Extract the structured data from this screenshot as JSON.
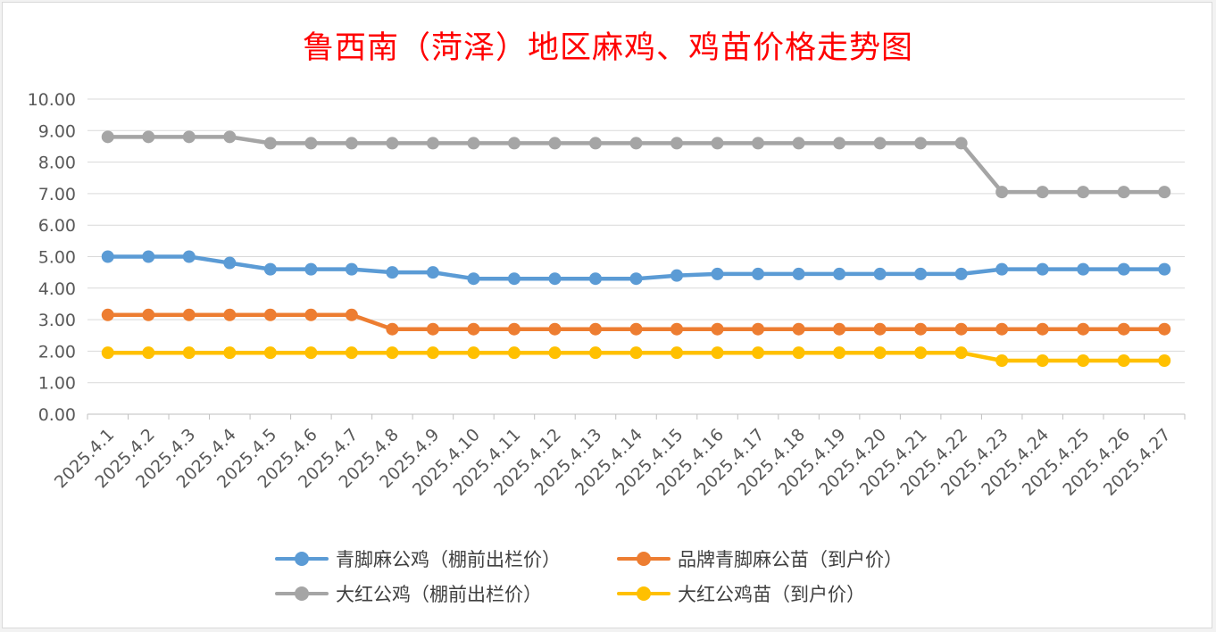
{
  "chart_data": {
    "type": "line",
    "title": "鲁西南（菏泽）地区麻鸡、鸡苗价格走势图",
    "categories": [
      "2025.4.1",
      "2025.4.2",
      "2025.4.3",
      "2025.4.4",
      "2025.4.5",
      "2025.4.6",
      "2025.4.7",
      "2025.4.8",
      "2025.4.9",
      "2025.4.10",
      "2025.4.11",
      "2025.4.12",
      "2025.4.13",
      "2025.4.14",
      "2025.4.15",
      "2025.4.16",
      "2025.4.17",
      "2025.4.18",
      "2025.4.19",
      "2025.4.20",
      "2025.4.21",
      "2025.4.22",
      "2025.4.23",
      "2025.4.24",
      "2025.4.25",
      "2025.4.26",
      "2025.4.27"
    ],
    "ylim": [
      0,
      10
    ],
    "yticks": [
      "0.00",
      "1.00",
      "2.00",
      "3.00",
      "4.00",
      "5.00",
      "6.00",
      "7.00",
      "8.00",
      "9.00",
      "10.00"
    ],
    "grid": true,
    "legend_position": "bottom",
    "series": [
      {
        "name": "青脚麻公鸡（棚前出栏价）",
        "color": "#5b9bd5",
        "values": [
          5.0,
          5.0,
          5.0,
          4.8,
          4.6,
          4.6,
          4.6,
          4.5,
          4.5,
          4.3,
          4.3,
          4.3,
          4.3,
          4.3,
          4.4,
          4.45,
          4.45,
          4.45,
          4.45,
          4.45,
          4.45,
          4.45,
          4.6,
          4.6,
          4.6,
          4.6,
          4.6
        ]
      },
      {
        "name": "品牌青脚麻公苗（到户价）",
        "color": "#ed7d31",
        "values": [
          3.15,
          3.15,
          3.15,
          3.15,
          3.15,
          3.15,
          3.15,
          2.7,
          2.7,
          2.7,
          2.7,
          2.7,
          2.7,
          2.7,
          2.7,
          2.7,
          2.7,
          2.7,
          2.7,
          2.7,
          2.7,
          2.7,
          2.7,
          2.7,
          2.7,
          2.7,
          2.7
        ]
      },
      {
        "name": "大红公鸡（棚前出栏价）",
        "color": "#a5a5a5",
        "values": [
          8.8,
          8.8,
          8.8,
          8.8,
          8.6,
          8.6,
          8.6,
          8.6,
          8.6,
          8.6,
          8.6,
          8.6,
          8.6,
          8.6,
          8.6,
          8.6,
          8.6,
          8.6,
          8.6,
          8.6,
          8.6,
          8.6,
          7.05,
          7.05,
          7.05,
          7.05,
          7.05
        ]
      },
      {
        "name": "大红公鸡苗（到户价）",
        "color": "#ffc000",
        "values": [
          1.95,
          1.95,
          1.95,
          1.95,
          1.95,
          1.95,
          1.95,
          1.95,
          1.95,
          1.95,
          1.95,
          1.95,
          1.95,
          1.95,
          1.95,
          1.95,
          1.95,
          1.95,
          1.95,
          1.95,
          1.95,
          1.95,
          1.7,
          1.7,
          1.7,
          1.7,
          1.7
        ]
      }
    ]
  }
}
